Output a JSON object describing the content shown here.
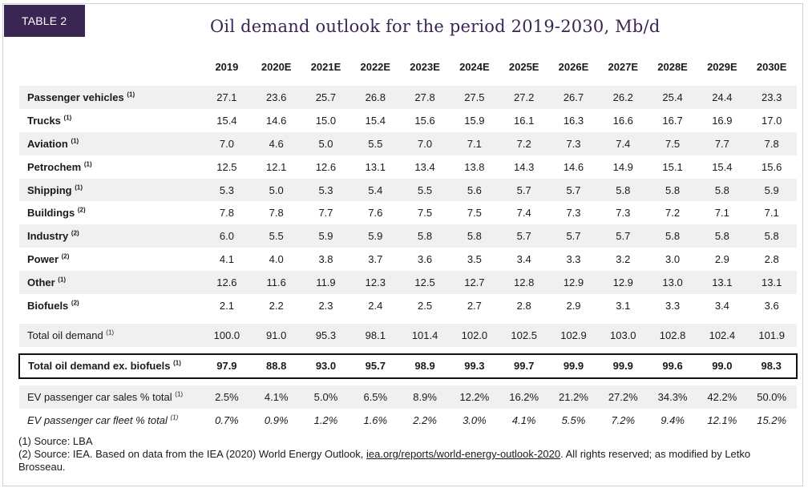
{
  "tag": "TABLE 2",
  "title": "Oil demand outlook for the period 2019-2030, Mb/d",
  "years": [
    "2019",
    "2020E",
    "2021E",
    "2022E",
    "2023E",
    "2024E",
    "2025E",
    "2026E",
    "2027E",
    "2028E",
    "2029E",
    "2030E"
  ],
  "sectors": [
    {
      "label": "Passenger vehicles",
      "note": "(1)",
      "values": [
        "27.1",
        "23.6",
        "25.7",
        "26.8",
        "27.8",
        "27.5",
        "27.2",
        "26.7",
        "26.2",
        "25.4",
        "24.4",
        "23.3"
      ]
    },
    {
      "label": "Trucks",
      "note": "(1)",
      "values": [
        "15.4",
        "14.6",
        "15.0",
        "15.4",
        "15.6",
        "15.9",
        "16.1",
        "16.3",
        "16.6",
        "16.7",
        "16.9",
        "17.0"
      ]
    },
    {
      "label": "Aviation",
      "note": "(1)",
      "values": [
        "7.0",
        "4.6",
        "5.0",
        "5.5",
        "7.0",
        "7.1",
        "7.2",
        "7.3",
        "7.4",
        "7.5",
        "7.7",
        "7.8"
      ]
    },
    {
      "label": "Petrochem",
      "note": "(1)",
      "values": [
        "12.5",
        "12.1",
        "12.6",
        "13.1",
        "13.4",
        "13.8",
        "14.3",
        "14.6",
        "14.9",
        "15.1",
        "15.4",
        "15.6"
      ]
    },
    {
      "label": "Shipping",
      "note": "(1)",
      "values": [
        "5.3",
        "5.0",
        "5.3",
        "5.4",
        "5.5",
        "5.6",
        "5.7",
        "5.7",
        "5.8",
        "5.8",
        "5.8",
        "5.9"
      ]
    },
    {
      "label": "Buildings",
      "note": "(2)",
      "values": [
        "7.8",
        "7.8",
        "7.7",
        "7.6",
        "7.5",
        "7.5",
        "7.4",
        "7.3",
        "7.3",
        "7.2",
        "7.1",
        "7.1"
      ]
    },
    {
      "label": "Industry",
      "note": "(2)",
      "values": [
        "6.0",
        "5.5",
        "5.9",
        "5.9",
        "5.8",
        "5.8",
        "5.7",
        "5.7",
        "5.7",
        "5.8",
        "5.8",
        "5.8"
      ]
    },
    {
      "label": "Power",
      "note": "(2)",
      "values": [
        "4.1",
        "4.0",
        "3.8",
        "3.7",
        "3.6",
        "3.5",
        "3.4",
        "3.3",
        "3.2",
        "3.0",
        "2.9",
        "2.8"
      ]
    },
    {
      "label": "Other",
      "note": "(1)",
      "values": [
        "12.6",
        "11.6",
        "11.9",
        "12.3",
        "12.5",
        "12.7",
        "12.8",
        "12.9",
        "12.9",
        "13.0",
        "13.1",
        "13.1"
      ]
    },
    {
      "label": "Biofuels",
      "note": "(2)",
      "values": [
        "2.1",
        "2.2",
        "2.3",
        "2.4",
        "2.5",
        "2.7",
        "2.8",
        "2.9",
        "3.1",
        "3.3",
        "3.4",
        "3.6"
      ]
    }
  ],
  "total": {
    "label": "Total oil demand",
    "note": "(1)",
    "values": [
      "100.0",
      "91.0",
      "95.3",
      "98.1",
      "101.4",
      "102.0",
      "102.5",
      "102.9",
      "103.0",
      "102.8",
      "102.4",
      "101.9"
    ]
  },
  "total_ex": {
    "label": "Total oil demand ex. biofuels",
    "note": "(1)",
    "values": [
      "97.9",
      "88.8",
      "93.0",
      "95.7",
      "98.9",
      "99.3",
      "99.7",
      "99.9",
      "99.9",
      "99.6",
      "99.0",
      "98.3"
    ]
  },
  "ev_sales": {
    "label": "EV passenger car sales % total",
    "note": "(1)",
    "values": [
      "2.5%",
      "4.1%",
      "5.0%",
      "6.5%",
      "8.9%",
      "12.2%",
      "16.2%",
      "21.2%",
      "27.2%",
      "34.3%",
      "42.2%",
      "50.0%"
    ]
  },
  "ev_fleet": {
    "label": "EV passenger car fleet % total",
    "note": "(1)",
    "values": [
      "0.7%",
      "0.9%",
      "1.2%",
      "1.6%",
      "2.2%",
      "3.0%",
      "4.1%",
      "5.5%",
      "7.2%",
      "9.4%",
      "12.1%",
      "15.2%"
    ]
  },
  "notes": {
    "note1": "(1) Source: LBA",
    "note2_prefix": "(2) Source: IEA. Based on data from the IEA (2020) World Energy Outlook, ",
    "note2_link": "iea.org/reports/world-energy-outlook-2020",
    "note2_suffix": ". All rights reserved; as modified by Letko Brosseau."
  }
}
